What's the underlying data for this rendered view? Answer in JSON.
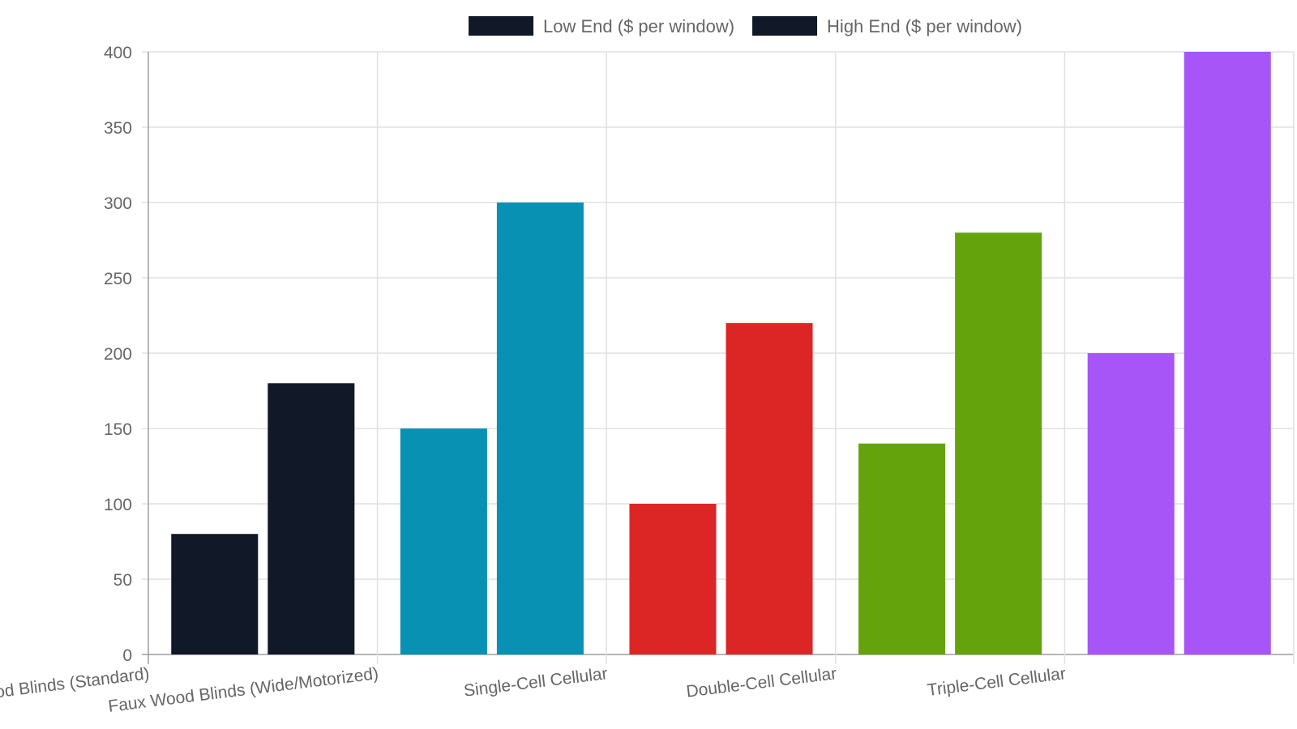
{
  "chart_data": {
    "type": "bar",
    "categories": [
      "Faux Wood Blinds (Standard)",
      "Faux Wood Blinds (Wide/Motorized)",
      "Single-Cell Cellular",
      "Double-Cell Cellular",
      "Triple-Cell Cellular"
    ],
    "series": [
      {
        "name": "Low End ($ per window)",
        "values": [
          80,
          150,
          100,
          140,
          200
        ]
      },
      {
        "name": "High End ($ per window)",
        "values": [
          180,
          300,
          220,
          280,
          400
        ]
      }
    ],
    "category_colors": [
      "#111827",
      "#0891b2",
      "#dc2626",
      "#65a30d",
      "#a855f7"
    ],
    "legend_swatch_color": "#111827",
    "ylim": [
      0,
      400
    ],
    "yticks": [
      0,
      50,
      100,
      150,
      200,
      250,
      300,
      350,
      400
    ],
    "grid": true,
    "legend_position": "top"
  }
}
